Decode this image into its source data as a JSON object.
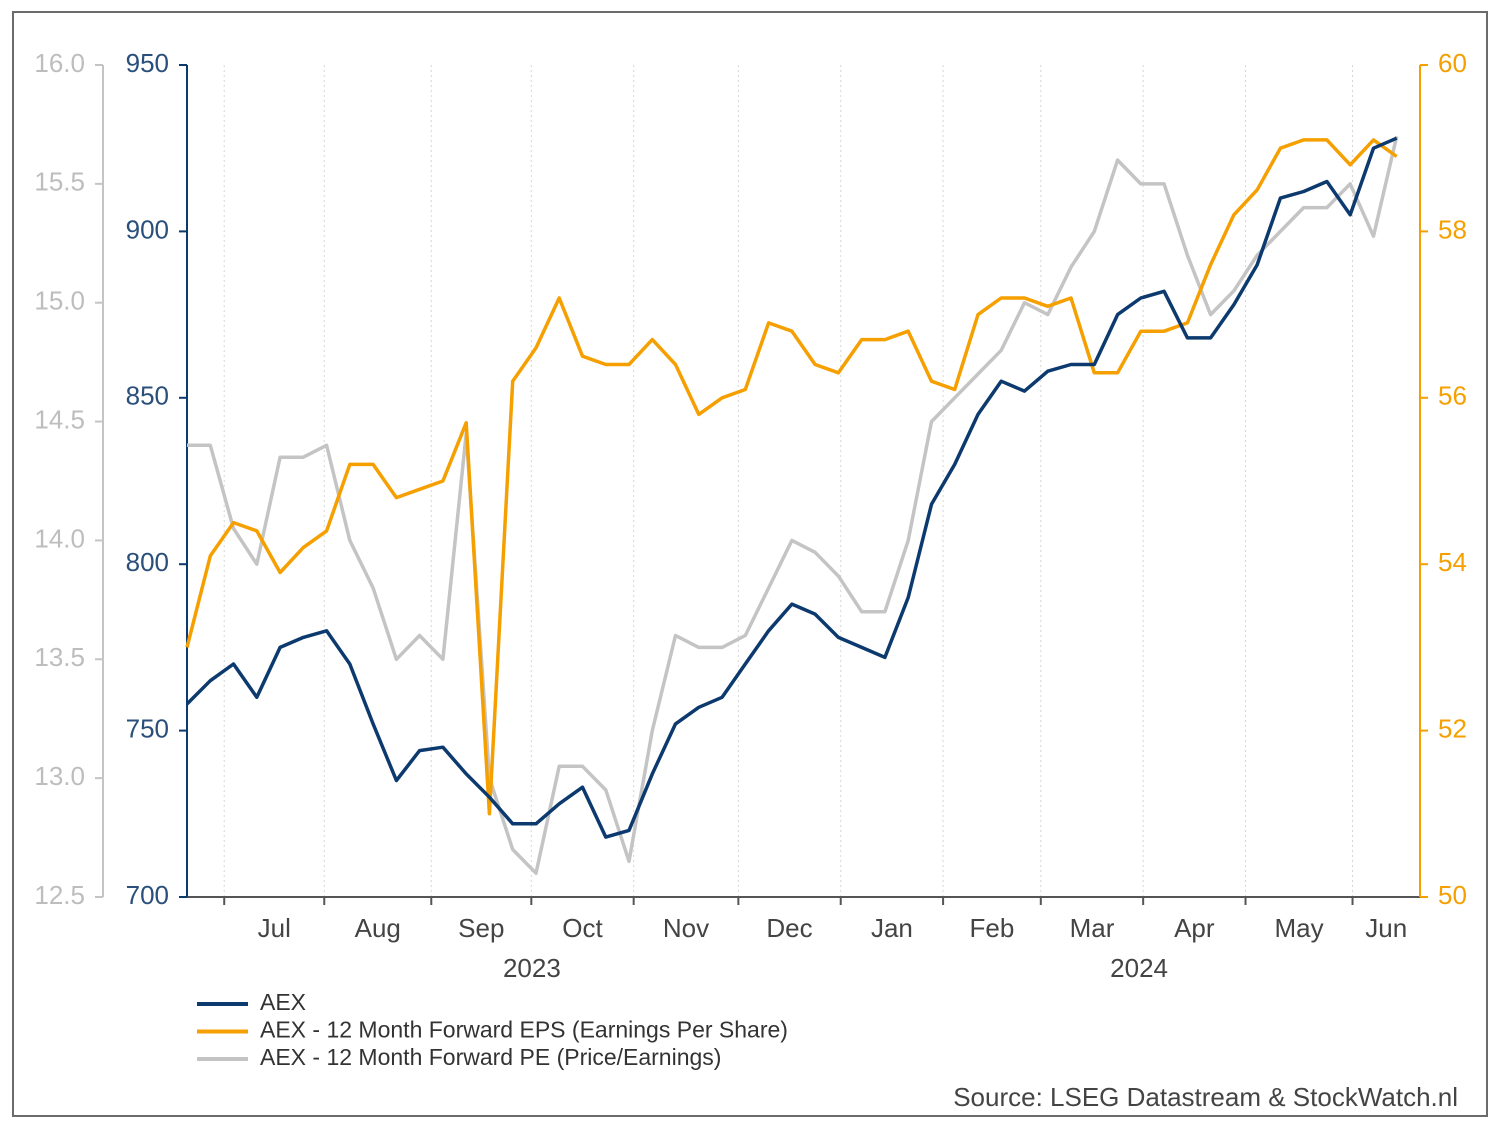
{
  "chart_data": {
    "type": "line",
    "series": [
      {
        "name": "AEX",
        "color": "#0d3a6e",
        "axis": "y",
        "values": [
          758,
          765,
          770,
          760,
          775,
          778,
          780,
          770,
          752,
          735,
          744,
          745,
          737,
          730,
          722,
          722,
          728,
          733,
          718,
          720,
          737,
          752,
          757,
          760,
          770,
          780,
          788,
          785,
          778,
          775,
          772,
          790,
          818,
          830,
          845,
          855,
          852,
          858,
          860,
          860,
          875,
          880,
          882,
          868,
          868,
          878,
          890,
          910,
          912,
          915,
          905,
          925,
          928
        ]
      },
      {
        "name": "AEX - 12 Month Forward EPS (Earnings Per Share)",
        "color": "#f5a000",
        "axis": "y2",
        "values": [
          53.0,
          54.1,
          54.5,
          54.4,
          53.9,
          54.2,
          54.4,
          55.2,
          55.2,
          54.8,
          54.9,
          55.0,
          55.7,
          51.0,
          56.2,
          56.6,
          57.2,
          56.5,
          56.4,
          56.4,
          56.7,
          56.4,
          55.8,
          56.0,
          56.1,
          56.9,
          56.8,
          56.4,
          56.3,
          56.7,
          56.7,
          56.8,
          56.2,
          56.1,
          57.0,
          57.2,
          57.2,
          57.1,
          57.2,
          56.3,
          56.3,
          56.8,
          56.8,
          56.9,
          57.6,
          58.2,
          58.5,
          59.0,
          59.1,
          59.1,
          58.8,
          59.1,
          58.9
        ]
      },
      {
        "name": "AEX - 12 Month Forward PE (Price/Earnings)",
        "color": "#c4c4c4",
        "axis": "y3",
        "values": [
          14.4,
          14.4,
          14.05,
          13.9,
          14.35,
          14.35,
          14.4,
          14.0,
          13.8,
          13.5,
          13.6,
          13.5,
          14.45,
          13.0,
          12.7,
          12.6,
          13.05,
          13.05,
          12.95,
          12.65,
          13.2,
          13.6,
          13.55,
          13.55,
          13.6,
          13.8,
          14.0,
          13.95,
          13.85,
          13.7,
          13.7,
          14.0,
          14.5,
          14.6,
          14.7,
          14.8,
          15.0,
          14.95,
          15.15,
          15.3,
          15.6,
          15.5,
          15.5,
          15.2,
          14.95,
          15.05,
          15.2,
          15.3,
          15.4,
          15.4,
          15.5,
          15.28,
          15.7
        ]
      }
    ],
    "xlim": [
      0,
      53
    ],
    "xtick_groups": [
      {
        "label": "2023",
        "ticks": [
          {
            "value": 1.6,
            "label": "Jul"
          },
          {
            "value": 5.9,
            "label": "Aug"
          },
          {
            "value": 10.5,
            "label": "Sep"
          },
          {
            "value": 14.8,
            "label": "Oct"
          },
          {
            "value": 19.2,
            "label": "Nov"
          },
          {
            "value": 23.7,
            "label": "Dec"
          }
        ]
      },
      {
        "label": "2024",
        "ticks": [
          {
            "value": 28.1,
            "label": "Jan"
          },
          {
            "value": 32.5,
            "label": "Feb"
          },
          {
            "value": 36.7,
            "label": "Mar"
          },
          {
            "value": 41.1,
            "label": "Apr"
          },
          {
            "value": 45.5,
            "label": "May"
          },
          {
            "value": 50.1,
            "label": "Jun"
          }
        ]
      }
    ],
    "ylim": [
      700,
      950
    ],
    "yticks": [
      700,
      750,
      800,
      850,
      900,
      950
    ],
    "y2lim": [
      50,
      60
    ],
    "y2ticks": [
      50,
      52,
      54,
      56,
      58,
      60
    ],
    "y3lim": [
      12.5,
      16.0
    ],
    "y3ticks": [
      12.5,
      {
        "value": 13,
        "label": "13.0"
      },
      13.5,
      {
        "value": 14,
        "label": "14.0"
      },
      14.5,
      {
        "value": 15,
        "label": "15.0"
      },
      15.5,
      {
        "value": 16,
        "label": "16.0"
      }
    ],
    "grid": true,
    "legend": "bottom-left",
    "source": "Source: LSEG Datastream & StockWatch.nl"
  }
}
